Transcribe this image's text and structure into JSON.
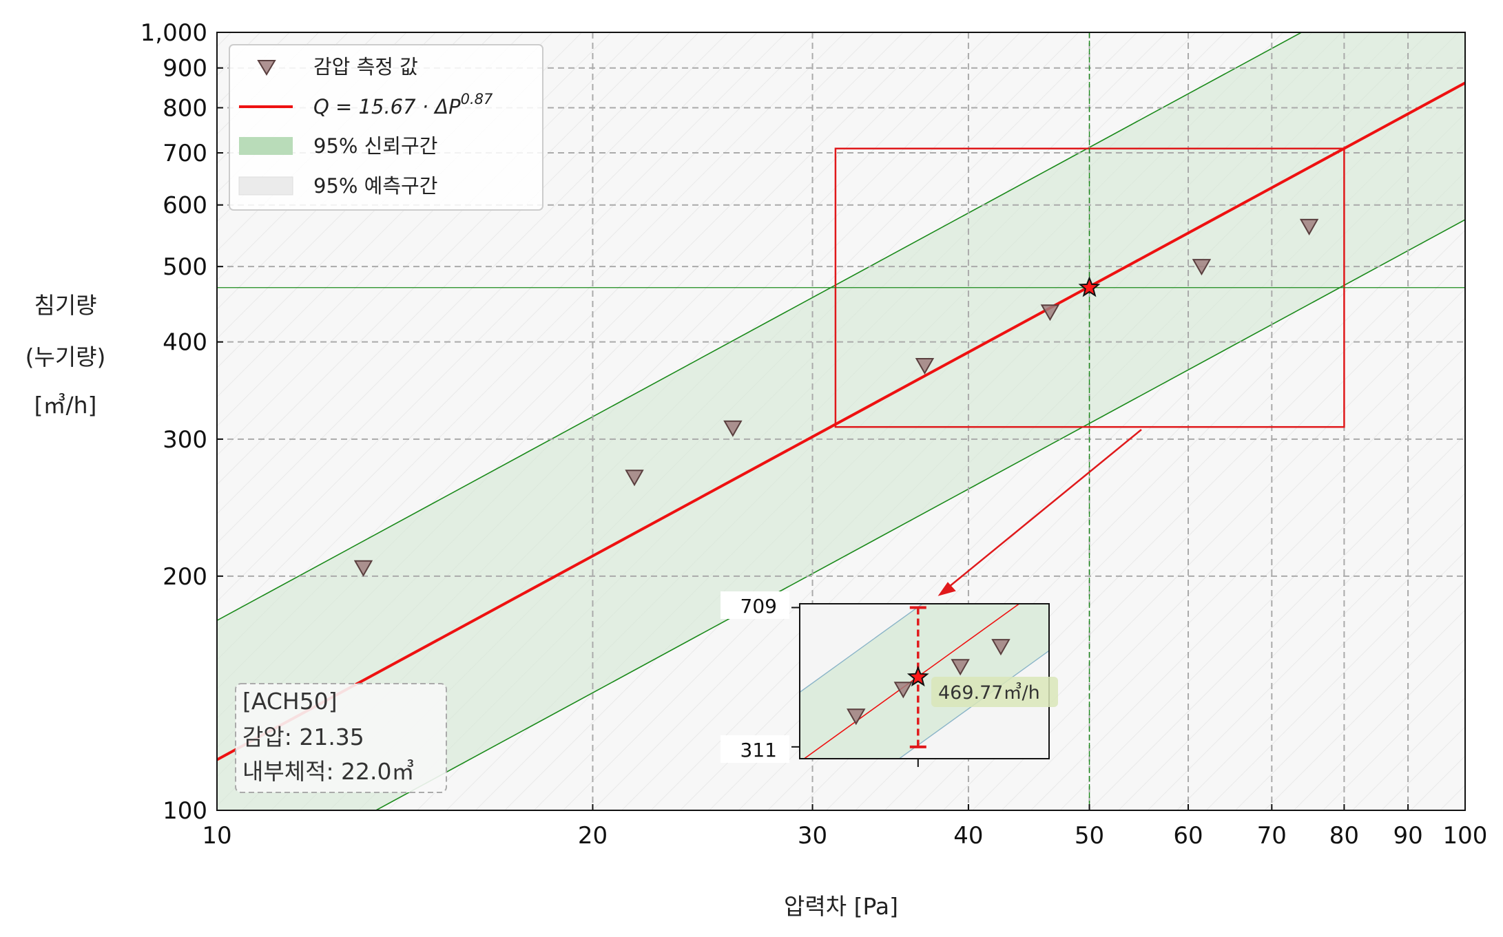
{
  "chart_data": {
    "type": "scatter",
    "title": "",
    "xlabel": "압력차 [Pa]",
    "ylabel_lines": [
      "침기량",
      "(누기량)",
      "[㎥/h]"
    ],
    "xscale": "log",
    "yscale": "log",
    "xlim": [
      10,
      100
    ],
    "ylim": [
      100,
      1000
    ],
    "x_ticks": [
      10,
      20,
      30,
      40,
      50,
      60,
      70,
      80,
      90,
      100
    ],
    "x_tick_labels": [
      "10",
      "20",
      "30",
      "40",
      "50",
      "60",
      "70",
      "80",
      "90",
      "100"
    ],
    "y_ticks": [
      100,
      200,
      300,
      400,
      500,
      600,
      700,
      800,
      900,
      1000
    ],
    "y_tick_labels": [
      "100",
      "200",
      "300",
      "400",
      "500",
      "600",
      "700",
      "800",
      "900",
      "1,000"
    ],
    "grid": true,
    "legend_position": "top-left",
    "legend": {
      "measured": "감압 측정 값",
      "fit": "Q = 15.67 · ΔP",
      "fit_exponent": "0.87",
      "ci": "95% 신뢰구간",
      "pi": "95% 예측구간"
    },
    "series": [
      {
        "name": "감압 측정 값",
        "kind": "scatter",
        "x": [
          13.1,
          21.6,
          25.9,
          36.9,
          46.5,
          61.5,
          75.0
        ],
        "y": [
          205,
          268,
          310,
          373,
          437,
          500,
          563
        ]
      }
    ],
    "fit": {
      "coefficient": 15.67,
      "exponent": 0.87
    },
    "confidence_band": {
      "lower_factor": 0.667,
      "upper_factor": 1.51
    },
    "highlight": {
      "x": 50,
      "y": 469.77
    },
    "zoom_box": {
      "x": [
        31.3,
        80
      ],
      "y": [
        311,
        709
      ]
    },
    "annotation": {
      "lines": [
        "[ACH50]",
        "감압: 21.35",
        "내부체적: 22.0㎥"
      ]
    },
    "inset": {
      "y_ticks": [
        709,
        311
      ],
      "y_tick_labels": [
        "709",
        "311"
      ],
      "value_label": "469.77㎥/h"
    },
    "colors": {
      "fit_line": "#ee1111",
      "band_fill": "#d3e8d3",
      "band_edge": "#1a8a1a",
      "marker_fill": "#a07f7f",
      "marker_edge": "#5a3f3f",
      "zoom_box": "#e0191b",
      "grid": "#aaaaaa",
      "plot_bg": "#f7f7f7"
    }
  }
}
